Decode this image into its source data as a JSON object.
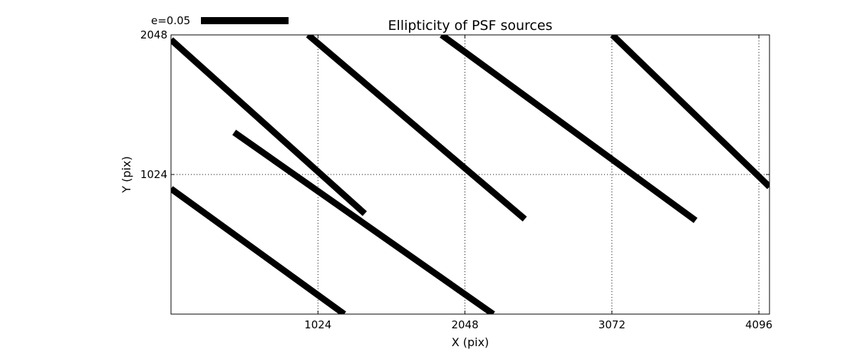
{
  "chart_data": {
    "type": "quiver",
    "title": "Ellipticity of PSF sources",
    "xlabel": "X (pix)",
    "ylabel": "Y (pix)",
    "xlim": [
      0,
      4170
    ],
    "ylim": [
      0,
      2048
    ],
    "x_ticks": [
      1024,
      2048,
      3072,
      4096
    ],
    "x_tick_labels": [
      "1024",
      "2048",
      "3072",
      "4096"
    ],
    "y_ticks": [
      1024,
      2048
    ],
    "y_tick_labels": [
      "1024",
      "2048"
    ],
    "grid": true,
    "legend": {
      "label": "e=0.05",
      "placement": "top-left, above plot"
    },
    "segments": [
      {
        "x1": 0,
        "y1": 2013,
        "x2": 1350,
        "y2": 737
      },
      {
        "x1": 440,
        "y1": 1333,
        "x2": 2245,
        "y2": 0
      },
      {
        "x1": 0,
        "y1": 920,
        "x2": 1207,
        "y2": 0
      },
      {
        "x1": 955,
        "y1": 2048,
        "x2": 2465,
        "y2": 697
      },
      {
        "x1": 1885,
        "y1": 2048,
        "x2": 3655,
        "y2": 687
      },
      {
        "x1": 3075,
        "y1": 2048,
        "x2": 4170,
        "y2": 934
      }
    ]
  }
}
